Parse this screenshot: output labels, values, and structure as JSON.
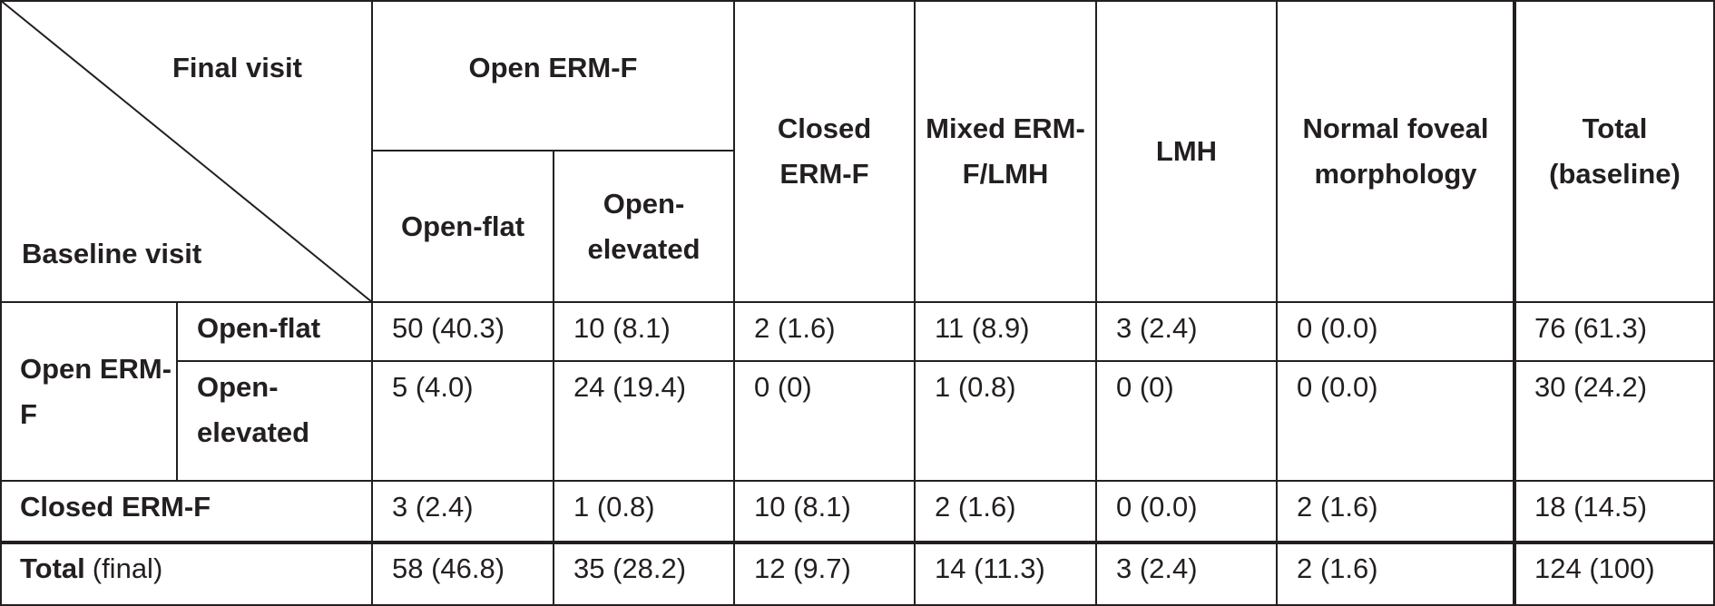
{
  "header": {
    "corner_top": "Final visit",
    "corner_bottom": "Baseline visit",
    "group": "Open ERM-F",
    "columns": [
      "Open-flat",
      "Open-elevated",
      "Closed ERM-F",
      "Mixed ERM-F/LMH",
      "LMH",
      "Normal foveal morphology",
      "Total (baseline)"
    ]
  },
  "rows": [
    {
      "group": "Open ERM-F",
      "label": "Open-flat",
      "cells": [
        "50 (40.3)",
        "10 (8.1)",
        "2 (1.6)",
        "11 (8.9)",
        "3 (2.4)",
        "0 (0.0)",
        "76 (61.3)"
      ]
    },
    {
      "label": "Open-elevated",
      "cells": [
        "5 (4.0)",
        "24 (19.4)",
        "0 (0)",
        "1 (0.8)",
        "0 (0)",
        "0 (0.0)",
        "30 (24.2)"
      ]
    },
    {
      "label": "Closed ERM-F",
      "cells": [
        "3 (2.4)",
        "1 (0.8)",
        "10 (8.1)",
        "2 (1.6)",
        "0 (0.0)",
        "2 (1.6)",
        "18 (14.5)"
      ]
    },
    {
      "label": "Total",
      "label_note": "(final)",
      "cells": [
        "58 (46.8)",
        "35 (28.2)",
        "12 (9.7)",
        "14 (11.3)",
        "3 (2.4)",
        "2 (1.6)",
        "124 (100)"
      ]
    }
  ]
}
